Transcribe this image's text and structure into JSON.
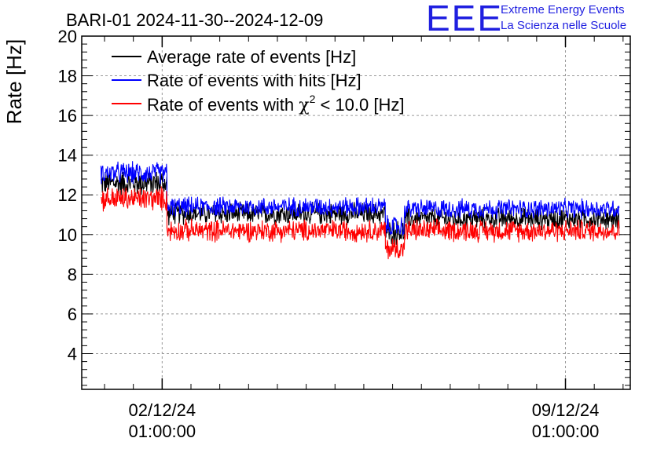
{
  "logo": {
    "mark": "EEE",
    "line1": "Extreme Energy Events",
    "line2": "La Scienza nelle Scuole",
    "color": "#1f1fe0"
  },
  "chart_data": {
    "type": "line",
    "title": "BARI-01 2024-11-30--2024-12-09",
    "ylabel": "Rate [Hz]",
    "xlabel": "",
    "ylim": [
      2.2,
      20
    ],
    "yticks": [
      4,
      6,
      8,
      10,
      12,
      14,
      16,
      18,
      20
    ],
    "xlim": [
      "2024-11-30 15:30",
      "2024-12-10 04:00"
    ],
    "xticks": [
      {
        "x": "2024-12-02 01:00",
        "label_line1": "02/12/24",
        "label_line2": "01:00:00"
      },
      {
        "x": "2024-12-09 01:00",
        "label_line1": "09/12/24",
        "label_line2": "01:00:00"
      }
    ],
    "grid": true,
    "legend_position": "top-left",
    "series": [
      {
        "name": "Average rate of events [Hz]",
        "color": "#000000",
        "segments": [
          {
            "x_start": "2024-11-30 23:30",
            "x_end": "2024-12-02 03:00",
            "mean": 12.6,
            "noise": 0.55
          },
          {
            "x_start": "2024-12-02 03:00",
            "x_end": "2024-12-05 22:00",
            "mean": 11.05,
            "noise": 0.45
          },
          {
            "x_start": "2024-12-05 22:00",
            "x_end": "2024-12-06 06:00",
            "mean": 10.1,
            "noise": 0.5
          },
          {
            "x_start": "2024-12-06 06:00",
            "x_end": "2024-12-09 23:30",
            "mean": 10.8,
            "noise": 0.45
          }
        ]
      },
      {
        "name": "Rate of events with hits [Hz]",
        "color": "#0000ff",
        "segments": [
          {
            "x_start": "2024-11-30 23:30",
            "x_end": "2024-12-02 03:00",
            "mean": 13.1,
            "noise": 0.45
          },
          {
            "x_start": "2024-12-02 03:00",
            "x_end": "2024-12-05 22:00",
            "mean": 11.4,
            "noise": 0.4
          },
          {
            "x_start": "2024-12-05 22:00",
            "x_end": "2024-12-06 06:00",
            "mean": 10.4,
            "noise": 0.45
          },
          {
            "x_start": "2024-12-06 06:00",
            "x_end": "2024-12-09 23:30",
            "mean": 11.3,
            "noise": 0.4
          }
        ]
      },
      {
        "name": "Rate of events with χ² < 10.0 [Hz]",
        "color": "#ff0000",
        "segments": [
          {
            "x_start": "2024-11-30 23:30",
            "x_end": "2024-12-02 03:00",
            "mean": 11.8,
            "noise": 0.5
          },
          {
            "x_start": "2024-12-02 03:00",
            "x_end": "2024-12-05 22:00",
            "mean": 10.2,
            "noise": 0.45
          },
          {
            "x_start": "2024-12-05 22:00",
            "x_end": "2024-12-06 06:00",
            "mean": 9.3,
            "noise": 0.5
          },
          {
            "x_start": "2024-12-06 06:00",
            "x_end": "2024-12-09 23:30",
            "mean": 10.2,
            "noise": 0.45
          }
        ]
      }
    ],
    "legend": [
      {
        "label": "Average rate of events [Hz]",
        "color": "#000000"
      },
      {
        "label": "Rate of events with hits [Hz]",
        "color": "#0000ff"
      },
      {
        "label_prefix": "Rate of events with ",
        "label_symbol": "χ",
        "label_sup": "2",
        "label_suffix": " < 10.0 [Hz]",
        "color": "#ff0000"
      }
    ]
  }
}
